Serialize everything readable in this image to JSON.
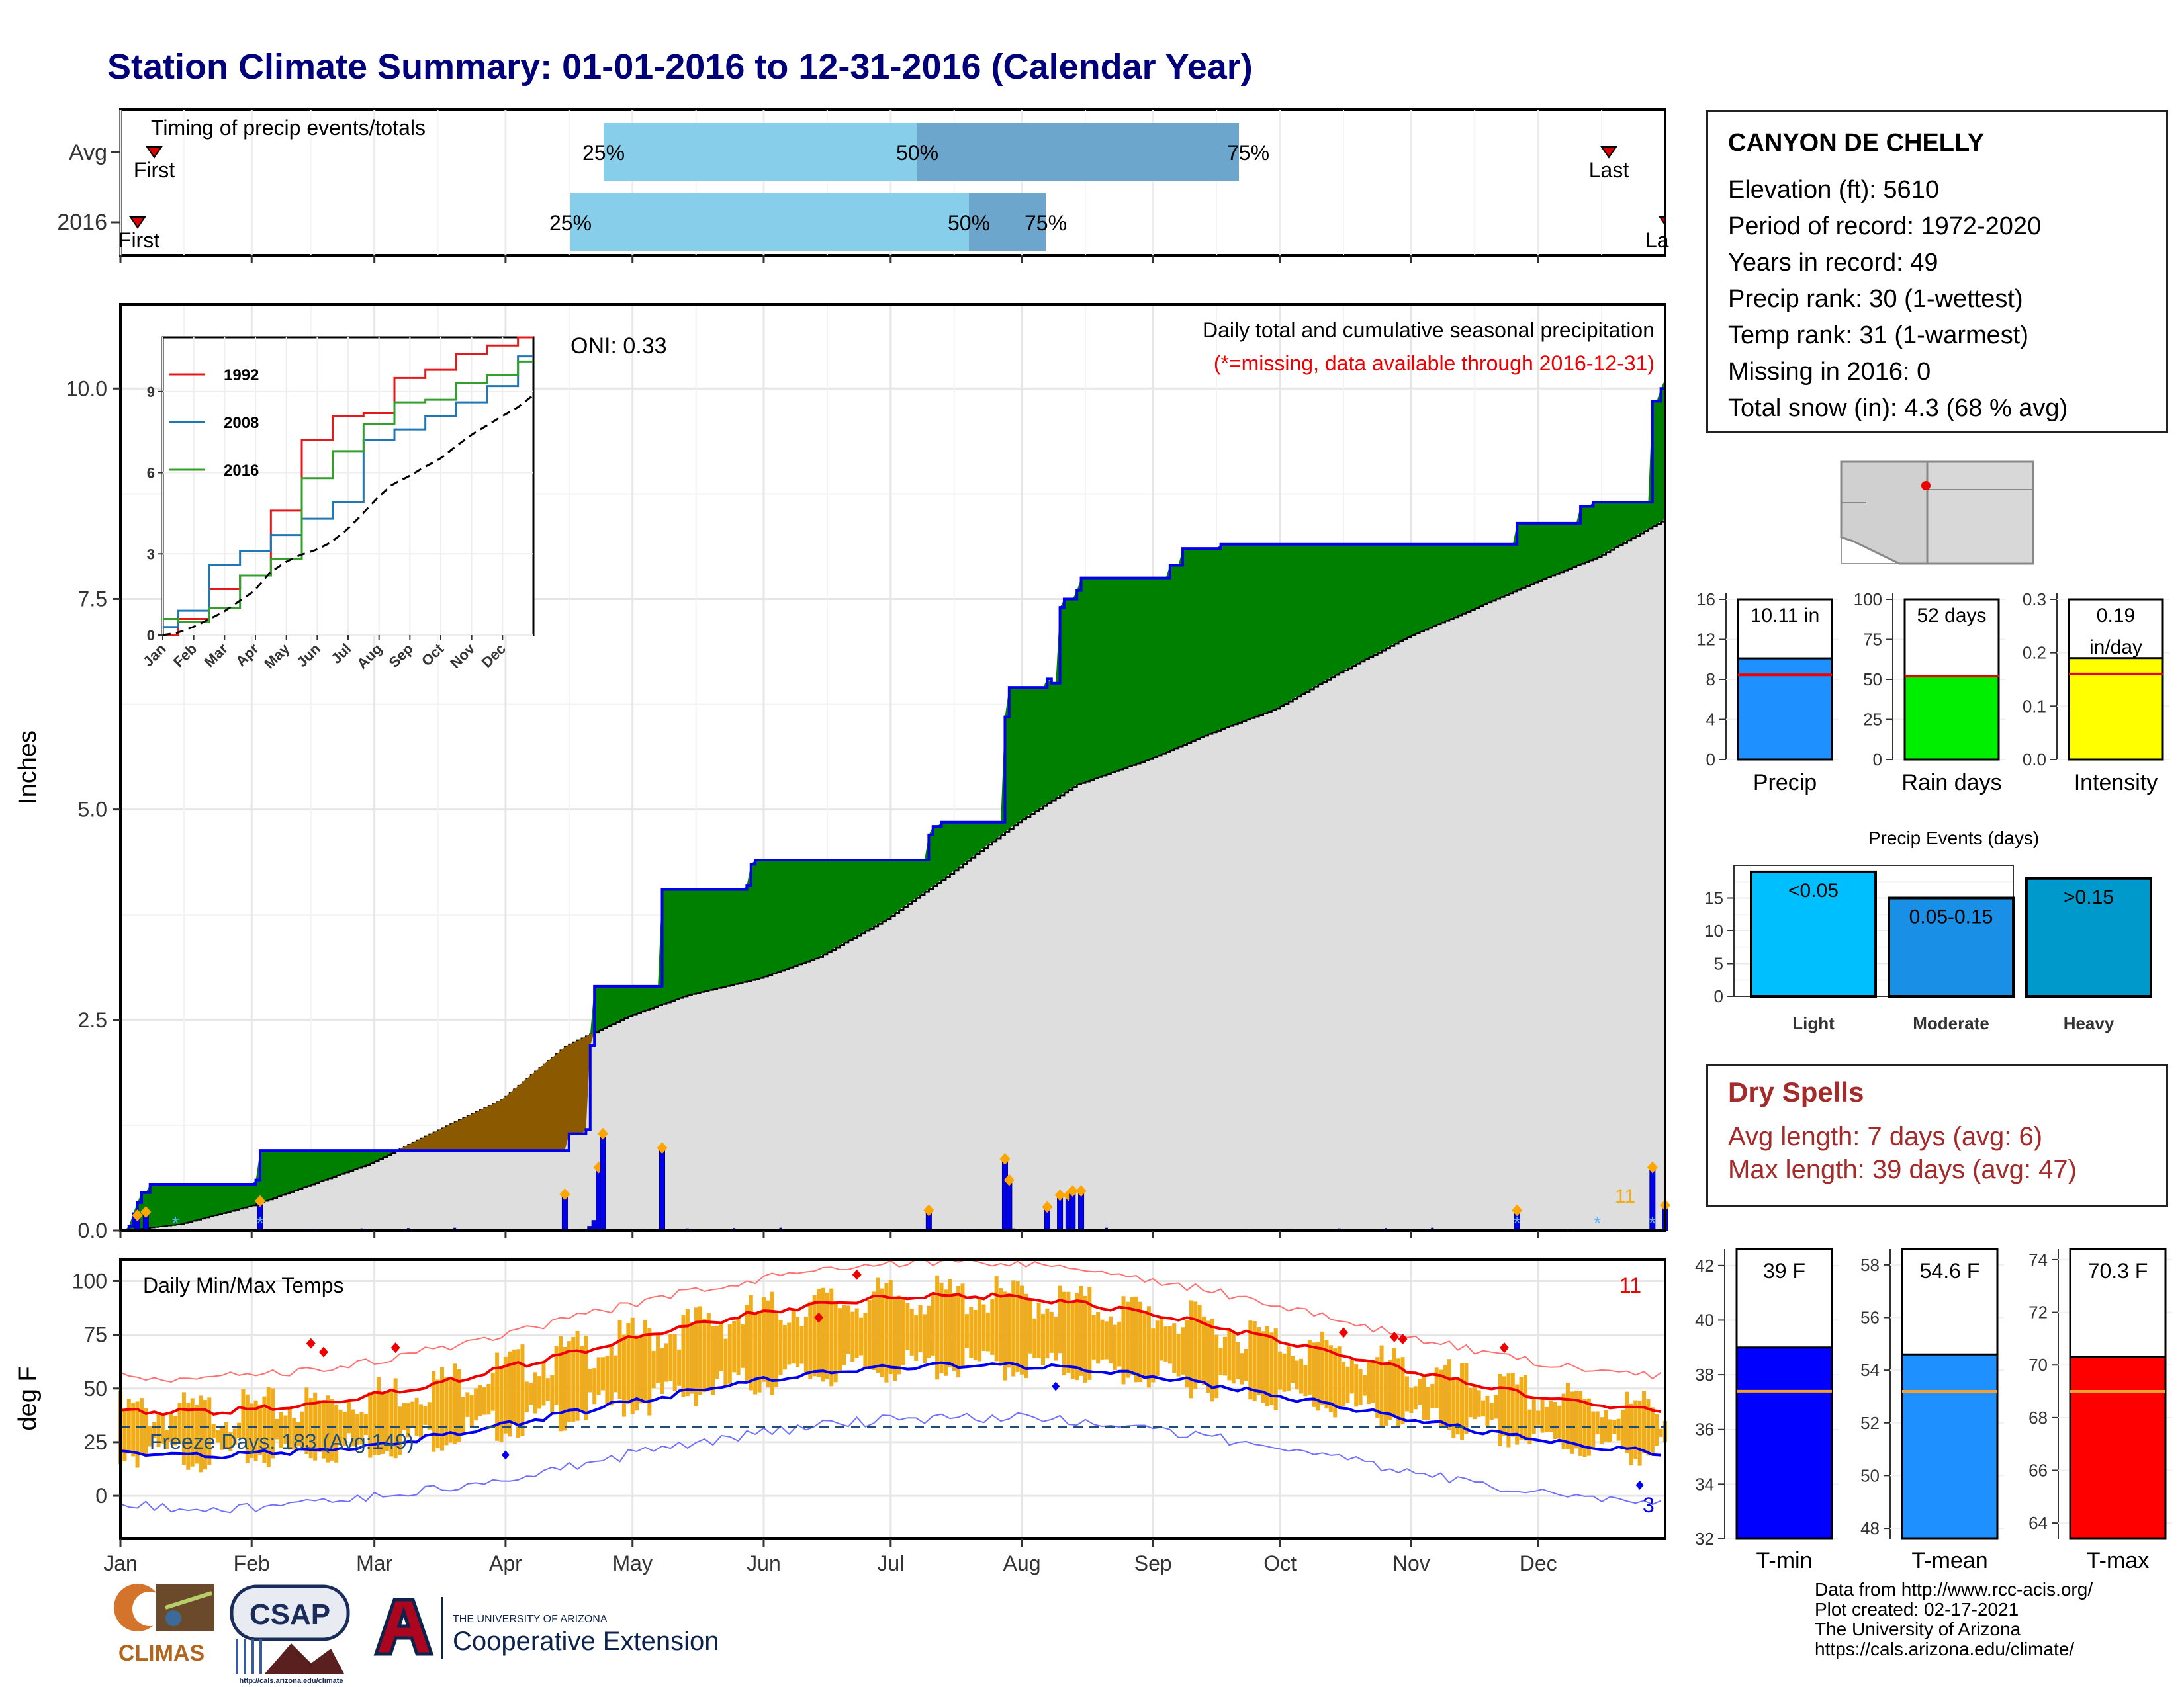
{
  "title": "Station Climate Summary: 01-01-2016 to 12-31-2016 (Calendar Year)",
  "colors": {
    "title": "#00007a",
    "green": "#008000",
    "brown": "#8b5a00",
    "gray": "#dedede",
    "blue": "#0000ee",
    "lightblue": "#87ceeb",
    "midblue": "#6ca6cd",
    "orange_bar": "#f0ad19",
    "red": "#ee0000",
    "tmin": "#0000ff",
    "tmean": "#1e90ff",
    "tmax": "#ff0000"
  },
  "timing": {
    "label": "Timing of precip events/totals",
    "rows": [
      "Avg",
      "2016"
    ],
    "first_label": "First",
    "last_label": "Last",
    "last_label_cut": "La",
    "pct": [
      "25%",
      "50%",
      "75%"
    ],
    "avg": {
      "first": "Jan 9",
      "p25": "Apr 27",
      "p50": "Jul 1",
      "p75": "Aug 30",
      "last": "Dec 22"
    },
    "y2016": {
      "first": "Jan 4",
      "p25": "Apr 17",
      "p50": "Jul 20",
      "p75": "Aug 4",
      "last": "Dec 31"
    }
  },
  "precip_panel": {
    "ylabel": "Inches",
    "yticks": [
      "0.0",
      "2.5",
      "5.0",
      "7.5",
      "10.0"
    ],
    "oni": "ONI: 0.33",
    "title": "Daily total and cumulative seasonal precipitation",
    "subtitle": "(*=missing, data available through 2016-12-31)",
    "marker_count": "11",
    "inset": {
      "legend": [
        "1992",
        "2008",
        "2016"
      ],
      "yticks": [
        "0",
        "3",
        "6",
        "9"
      ],
      "xticks": [
        "Jan",
        "Feb",
        "Mar",
        "Apr",
        "May",
        "Jun",
        "Jul",
        "Aug",
        "Sep",
        "Oct",
        "Nov",
        "Dec"
      ]
    }
  },
  "temp_panel": {
    "ylabel": "deg F",
    "title": "Daily Min/Max Temps",
    "yticks": [
      "0",
      "25",
      "50",
      "75",
      "100"
    ],
    "freeze": "Freeze Days: 183 (Avg:149)",
    "max_records": "11",
    "min_records": "3",
    "xticks": [
      "Jan",
      "Feb",
      "Mar",
      "Apr",
      "May",
      "Jun",
      "Jul",
      "Aug",
      "Sep",
      "Oct",
      "Nov",
      "Dec"
    ]
  },
  "station": {
    "name": "CANYON DE CHELLY",
    "lines": [
      "Elevation (ft): 5610",
      "Period of record: 1972-2020",
      "Years in record: 49",
      "Precip rank: 30 (1-wettest)",
      "Temp rank: 31 (1-warmest)",
      "Missing in 2016: 0",
      "Total snow (in): 4.3 (68 % avg)"
    ]
  },
  "small_bars": {
    "precip": {
      "label": "Precip",
      "value_text": "10.11 in",
      "yticks": [
        "0",
        "4",
        "8",
        "12",
        "16"
      ]
    },
    "raindays": {
      "label": "Rain days",
      "value_text": "52 days",
      "yticks": [
        "0",
        "25",
        "50",
        "75",
        "100"
      ]
    },
    "intensity": {
      "label": "Intensity",
      "value_text_1": "0.19",
      "value_text_2": "in/day",
      "yticks": [
        "0.0",
        "0.1",
        "0.2",
        "0.3"
      ]
    }
  },
  "events": {
    "title": "Precip Events (days)",
    "yticks": [
      "0",
      "5",
      "10",
      "15"
    ],
    "bars": [
      {
        "label": "Light",
        "text": "<0.05"
      },
      {
        "label": "Moderate",
        "text": "0.05-0.15"
      },
      {
        "label": "Heavy",
        "text": ">0.15"
      }
    ]
  },
  "dry_spells": {
    "title": "Dry Spells",
    "avg": "Avg length: 7 days (avg: 6)",
    "max": "Max length: 39 days (avg: 47)"
  },
  "temp_bars": {
    "tmin": {
      "label": "T-min",
      "text": "39 F",
      "yticks": [
        "32",
        "34",
        "36",
        "38",
        "40",
        "42"
      ]
    },
    "tmean": {
      "label": "T-mean",
      "text": "54.6 F",
      "yticks": [
        "48",
        "50",
        "52",
        "54",
        "56",
        "58"
      ]
    },
    "tmax": {
      "label": "T-max",
      "text": "70.3 F",
      "yticks": [
        "64",
        "66",
        "68",
        "70",
        "72",
        "74"
      ]
    }
  },
  "logos": {
    "climas": "CLIMAS",
    "csap": "CSAP",
    "csap_url": "http://cals.arizona.edu/climate",
    "ua_line1": "THE UNIVERSITY OF ARIZONA",
    "ua_line2": "Cooperative Extension"
  },
  "footer": [
    "Data from http://www.rcc-acis.org/",
    "Plot created: 02-17-2021",
    "The University of Arizona",
    "https://cals.arizona.edu/climate/"
  ],
  "chart_data": [
    {
      "type": "bar",
      "name": "timing",
      "categories": [
        "Avg",
        "2016"
      ],
      "series": [
        {
          "name": "25%",
          "values": [
            "Apr 27",
            "Apr 17"
          ]
        },
        {
          "name": "50%",
          "values": [
            "Jul 1",
            "Jul 20"
          ]
        },
        {
          "name": "75%",
          "values": [
            "Aug 30",
            "Aug 4"
          ]
        }
      ]
    },
    {
      "type": "area",
      "name": "cumulative_precip",
      "x_unit": "day of year",
      "ylim": [
        0,
        11
      ],
      "avg_cumulative": [
        [
          1,
          0.0
        ],
        [
          15,
          0.08
        ],
        [
          32,
          0.3
        ],
        [
          60,
          0.8
        ],
        [
          91,
          1.55
        ],
        [
          106,
          2.18
        ],
        [
          121,
          2.55
        ],
        [
          135,
          2.8
        ],
        [
          152,
          3.0
        ],
        [
          166,
          3.25
        ],
        [
          182,
          3.7
        ],
        [
          196,
          4.2
        ],
        [
          213,
          4.85
        ],
        [
          227,
          5.3
        ],
        [
          244,
          5.6
        ],
        [
          258,
          5.9
        ],
        [
          274,
          6.2
        ],
        [
          288,
          6.6
        ],
        [
          305,
          7.05
        ],
        [
          319,
          7.35
        ],
        [
          335,
          7.7
        ],
        [
          350,
          8.0
        ],
        [
          366,
          8.45
        ]
      ],
      "cumulative_2016": [
        [
          1,
          0.0
        ],
        [
          3,
          0.05
        ],
        [
          4,
          0.2
        ],
        [
          5,
          0.33
        ],
        [
          6,
          0.45
        ],
        [
          8,
          0.55
        ],
        [
          33,
          0.6
        ],
        [
          34,
          0.95
        ],
        [
          106,
          0.95
        ],
        [
          107,
          1.15
        ],
        [
          111,
          1.2
        ],
        [
          112,
          2.2
        ],
        [
          113,
          2.9
        ],
        [
          128,
          2.9
        ],
        [
          129,
          4.05
        ],
        [
          149,
          4.1
        ],
        [
          150,
          4.35
        ],
        [
          151,
          4.4
        ],
        [
          190,
          4.4
        ],
        [
          192,
          4.7
        ],
        [
          193,
          4.8
        ],
        [
          195,
          4.85
        ],
        [
          209,
          4.85
        ],
        [
          210,
          6.1
        ],
        [
          211,
          6.45
        ],
        [
          220,
          6.55
        ],
        [
          221,
          6.5
        ],
        [
          223,
          7.4
        ],
        [
          224,
          7.5
        ],
        [
          227,
          7.6
        ],
        [
          228,
          7.75
        ],
        [
          240,
          7.75
        ],
        [
          249,
          7.9
        ],
        [
          252,
          8.1
        ],
        [
          261,
          8.15
        ],
        [
          330,
          8.15
        ],
        [
          331,
          8.4
        ],
        [
          345,
          8.4
        ],
        [
          346,
          8.6
        ],
        [
          349,
          8.65
        ],
        [
          362,
          8.65
        ],
        [
          363,
          9.85
        ],
        [
          365,
          10.0
        ],
        [
          366,
          10.11
        ]
      ],
      "daily_major": [
        [
          5,
          0.18
        ],
        [
          7,
          0.22
        ],
        [
          34,
          0.35
        ],
        [
          106,
          0.43
        ],
        [
          112,
          0.05
        ],
        [
          113,
          0.12
        ],
        [
          114,
          0.75
        ],
        [
          115,
          1.15
        ],
        [
          129,
          0.98
        ],
        [
          192,
          0.24
        ],
        [
          210,
          0.85
        ],
        [
          211,
          0.6
        ],
        [
          220,
          0.28
        ],
        [
          223,
          0.42
        ],
        [
          225,
          0.42
        ],
        [
          226,
          0.47
        ],
        [
          228,
          0.47
        ],
        [
          331,
          0.24
        ],
        [
          363,
          0.75
        ],
        [
          366,
          0.3
        ]
      ]
    },
    {
      "type": "line",
      "name": "inset_cumulative",
      "x": [
        "Jan",
        "Feb",
        "Mar",
        "Apr",
        "May",
        "Jun",
        "Jul",
        "Aug",
        "Sep",
        "Oct",
        "Nov",
        "Dec"
      ],
      "series": [
        {
          "name": "1992",
          "values": [
            0.6,
            1.7,
            2.2,
            4.6,
            7.2,
            8.1,
            8.2,
            9.5,
            9.8,
            10.4,
            10.7,
            11.0
          ]
        },
        {
          "name": "2008",
          "values": [
            0.9,
            2.6,
            3.1,
            3.7,
            4.3,
            4.9,
            7.2,
            7.6,
            8.1,
            8.6,
            9.2,
            10.3
          ]
        },
        {
          "name": "2016",
          "values": [
            0.5,
            1.0,
            2.2,
            2.8,
            5.8,
            6.8,
            7.8,
            8.6,
            8.7,
            9.3,
            9.6,
            10.11
          ]
        }
      ]
    },
    {
      "type": "line",
      "name": "daily_temps",
      "ylim": [
        -20,
        110
      ],
      "x": [
        "Jan",
        "Feb",
        "Mar",
        "Apr",
        "May",
        "Jun",
        "Jul",
        "Aug",
        "Sep",
        "Oct",
        "Nov",
        "Dec"
      ],
      "series": [
        {
          "name": "avg_max",
          "values": [
            40,
            45,
            52,
            60,
            70,
            80,
            90,
            93,
            91,
            84,
            75,
            58
          ]
        },
        {
          "name": "avg_min",
          "values": [
            19,
            21,
            26,
            31,
            36,
            45,
            55,
            61,
            62,
            55,
            42,
            30
          ]
        }
      ]
    },
    {
      "type": "bar",
      "name": "summary_bars",
      "categories": [
        "Precip (in)",
        "Rain days",
        "Intensity (in/day)",
        "Light",
        "Moderate",
        "Heavy",
        "T-min (F)",
        "T-mean (F)",
        "T-max (F)"
      ],
      "values": [
        10.11,
        52,
        0.19,
        19,
        15,
        18,
        39,
        54.6,
        70.3
      ],
      "normals": [
        8.45,
        52,
        0.16,
        null,
        null,
        null,
        37.4,
        53.2,
        69.0
      ]
    }
  ]
}
